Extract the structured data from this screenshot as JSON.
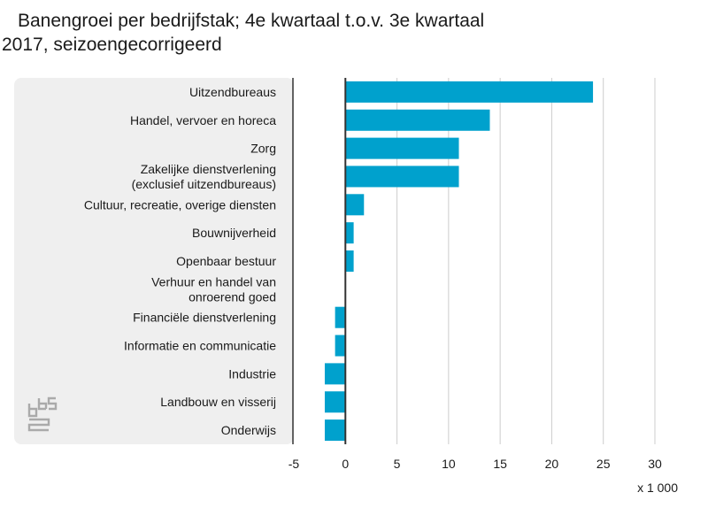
{
  "title": "Banengroei per bedrijfstak; 4e kwartaal t.o.v. 3e kwartaal 2017, seizoengecorrigeerd",
  "logo_icon": "cbs-logo-icon",
  "chart_data": {
    "type": "bar",
    "orientation": "horizontal",
    "title": "Banengroei per bedrijfstak; 4e kwartaal t.o.v. 3e kwartaal 2017, seizoengecorrigeerd",
    "categories": [
      [
        "Uitzendbureaus"
      ],
      [
        "Handel, vervoer en horeca"
      ],
      [
        "Zorg"
      ],
      [
        "Zakelijke dienstverlening",
        "(exclusief uitzendbureaus)"
      ],
      [
        "Cultuur, recreatie, overige diensten"
      ],
      [
        "Bouwnijverheid"
      ],
      [
        "Openbaar bestuur"
      ],
      [
        "Verhuur en handel van",
        "onroerend goed"
      ],
      [
        "Financiële dienstverlening"
      ],
      [
        "Informatie en communicatie"
      ],
      [
        "Industrie"
      ],
      [
        "Landbouw en visserij"
      ],
      [
        "Onderwijs"
      ]
    ],
    "values": [
      24,
      14,
      11,
      11,
      1.8,
      0.8,
      0.8,
      0,
      -1,
      -1,
      -2,
      -2,
      -2
    ],
    "xlim": [
      -5,
      30
    ],
    "xticks": [
      -5,
      0,
      5,
      10,
      15,
      20,
      25,
      30
    ],
    "xtick_labels": [
      "-5",
      "0",
      "5",
      "10",
      "15",
      "20",
      "25",
      "30"
    ],
    "unit_label": "x 1 000",
    "grid": true,
    "bar_color": "#00a1cd",
    "label_panel_color": "#efefef",
    "grid_color": "#cccccc",
    "axis_color": "#333333"
  }
}
